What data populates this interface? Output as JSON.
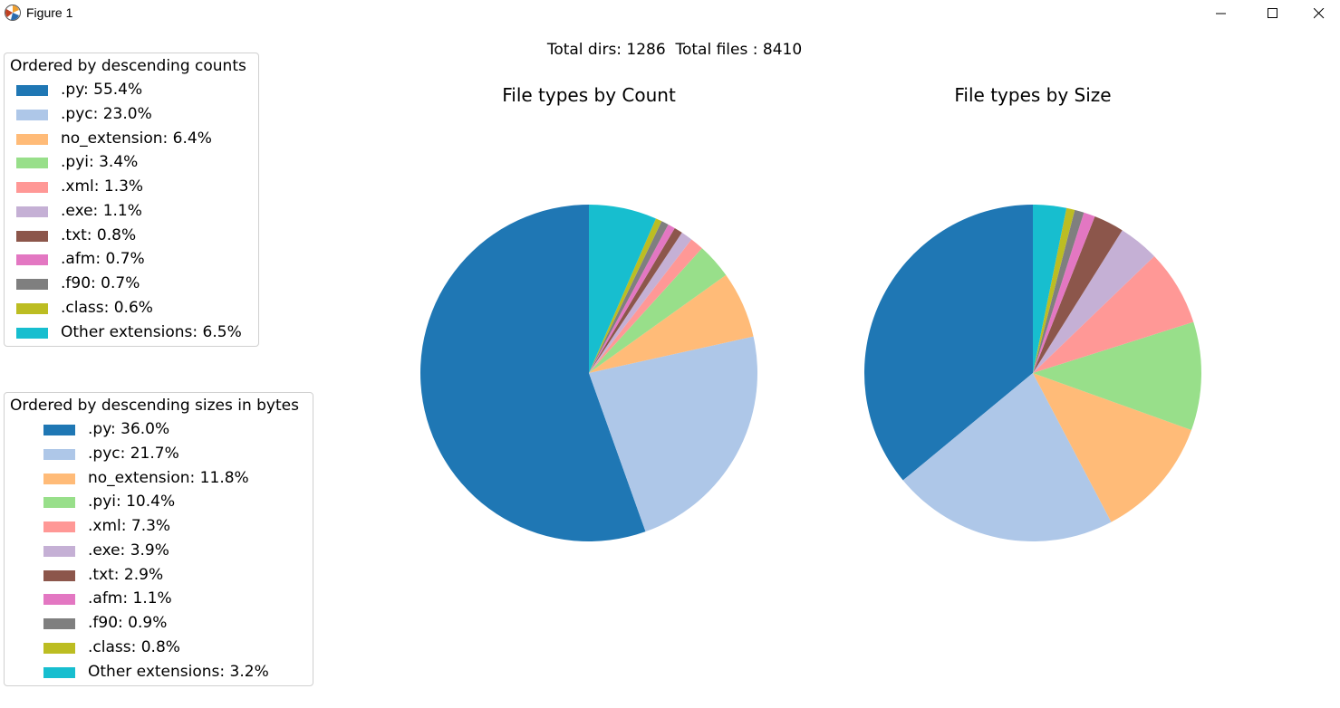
{
  "window": {
    "title": "Figure 1"
  },
  "suptitle": "Total dirs: 1286  Total files : 8410",
  "colors": [
    "#1f77b4",
    "#aec7e8",
    "#ffbb78",
    "#98df8a",
    "#ff9896",
    "#c5b0d5",
    "#8c564b",
    "#e377c2",
    "#7f7f7f",
    "#bcbd22",
    "#17becf"
  ],
  "chart_data": [
    {
      "type": "pie",
      "title": "File types by Count",
      "legend_title": "Ordered by descending counts",
      "legend_position": "upper left",
      "start_angle": 90,
      "direction": "counterclockwise",
      "labels": [
        ".py",
        ".pyc",
        "no_extension",
        ".pyi",
        ".xml",
        ".exe",
        ".txt",
        ".afm",
        ".f90",
        ".class",
        "Other extensions"
      ],
      "values": [
        55.4,
        23.0,
        6.4,
        3.4,
        1.3,
        1.1,
        0.8,
        0.7,
        0.7,
        0.6,
        6.5
      ],
      "legend_labels": [
        ".py: 55.4%",
        ".pyc: 23.0%",
        "no_extension: 6.4%",
        ".pyi: 3.4%",
        ".xml: 1.3%",
        ".exe: 1.1%",
        ".txt: 0.8%",
        ".afm: 0.7%",
        ".f90: 0.7%",
        ".class: 0.6%",
        "Other extensions: 6.5%"
      ]
    },
    {
      "type": "pie",
      "title": "File types by Size",
      "legend_title": "Ordered by descending sizes in bytes",
      "legend_position": "lower left",
      "start_angle": 90,
      "direction": "counterclockwise",
      "labels": [
        ".py",
        ".pyc",
        "no_extension",
        ".pyi",
        ".xml",
        ".exe",
        ".txt",
        ".afm",
        ".f90",
        ".class",
        "Other extensions"
      ],
      "values": [
        36.0,
        21.7,
        11.8,
        10.4,
        7.3,
        3.9,
        2.9,
        1.1,
        0.9,
        0.8,
        3.2
      ],
      "legend_labels": [
        ".py: 36.0%",
        ".pyc: 21.7%",
        "no_extension: 11.8%",
        ".pyi: 10.4%",
        ".xml: 7.3%",
        ".exe: 3.9%",
        ".txt: 2.9%",
        ".afm: 1.1%",
        ".f90: 0.9%",
        ".class: 0.8%",
        "Other extensions: 3.2%"
      ]
    }
  ]
}
